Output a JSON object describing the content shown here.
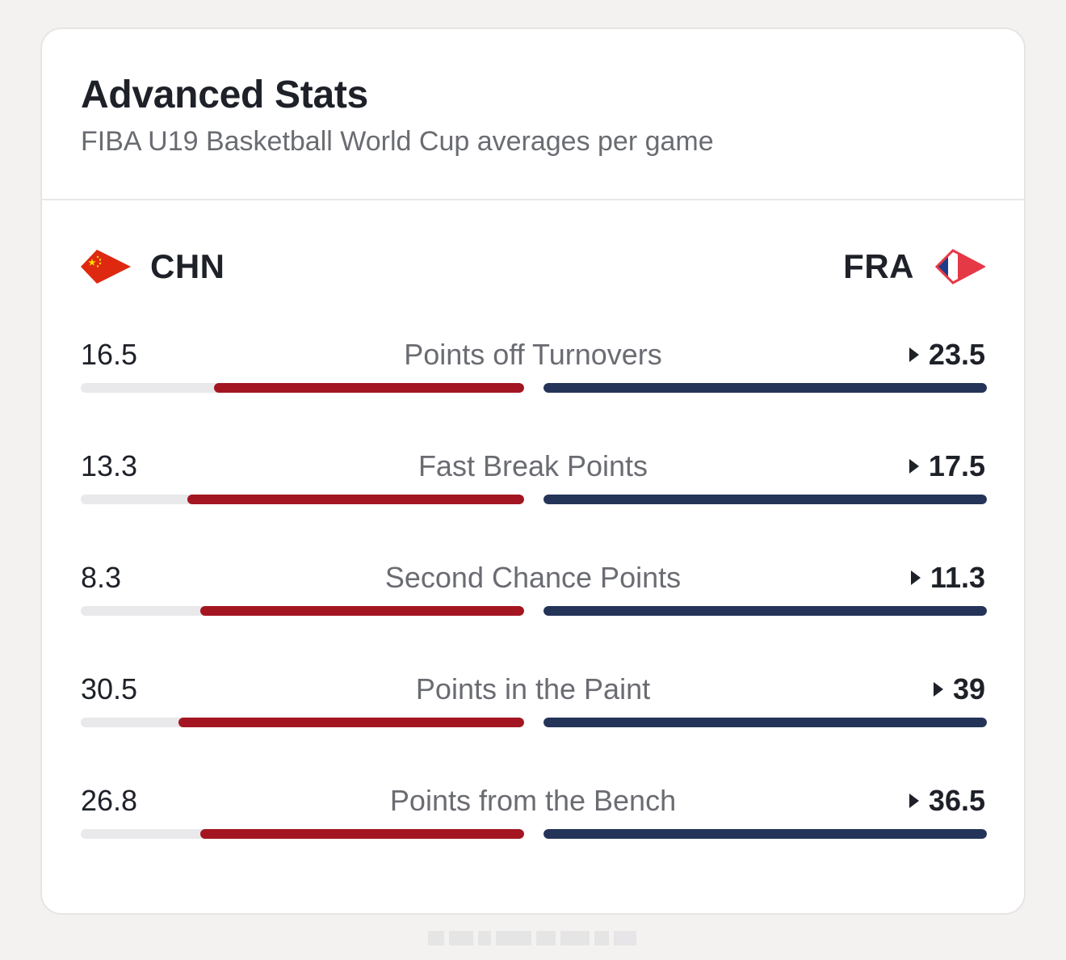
{
  "card": {
    "title": "Advanced Stats",
    "subtitle": "FIBA U19 Basketball World Cup averages per game"
  },
  "teams": {
    "home": {
      "abbr": "CHN",
      "flag_icon": "china-flag-icon",
      "color": "#a31621"
    },
    "away": {
      "abbr": "FRA",
      "flag_icon": "france-flag-icon",
      "color": "#243459"
    }
  },
  "stats": [
    {
      "label": "Points off Turnovers",
      "home": "16.5",
      "away": "23.5",
      "home_share": 0.7,
      "away_share": 1.0
    },
    {
      "label": "Fast Break Points",
      "home": "13.3",
      "away": "17.5",
      "home_share": 0.76,
      "away_share": 1.0
    },
    {
      "label": "Second Chance Points",
      "home": "8.3",
      "away": "11.3",
      "home_share": 0.73,
      "away_share": 1.0
    },
    {
      "label": "Points in the Paint",
      "home": "30.5",
      "away": "39",
      "home_share": 0.78,
      "away_share": 1.0
    },
    {
      "label": "Points from the Bench",
      "home": "26.8",
      "away": "36.5",
      "home_share": 0.73,
      "away_share": 1.0
    }
  ]
}
